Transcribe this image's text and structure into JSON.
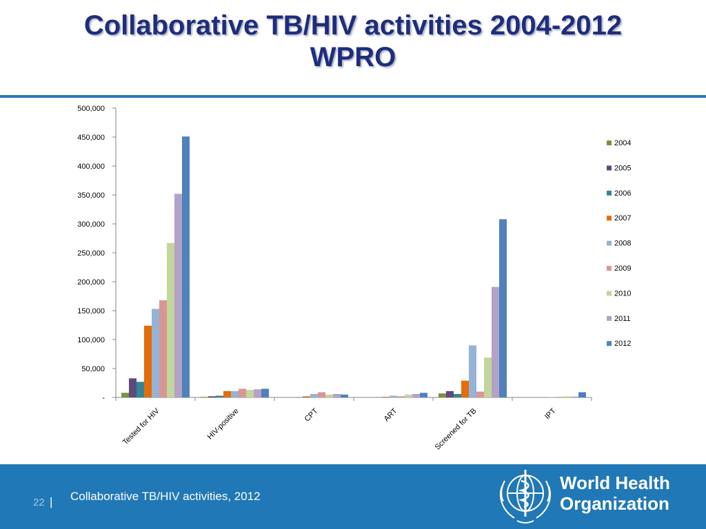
{
  "slide": {
    "title_line1": "Collaborative TB/HIV activities 2004-2012",
    "title_line2": "WPRO"
  },
  "footer": {
    "page_number": "22",
    "separator": "|",
    "text": "Collaborative TB/HIV activities, 2012",
    "org_line1": "World Health",
    "org_line2": "Organization",
    "colors": {
      "band": "#2178b6",
      "page_number": "#9fc8ea",
      "text": "#ffffff"
    }
  },
  "chart_data": {
    "type": "bar",
    "categories": [
      "Tested for HIV",
      "HIV-positive",
      "CPT",
      "ART",
      "Screened for TB",
      "IPT"
    ],
    "series": [
      {
        "name": "2004",
        "color": "#77933c",
        "values": [
          8000,
          1000,
          0,
          0,
          7000,
          0
        ]
      },
      {
        "name": "2005",
        "color": "#5f497a",
        "values": [
          33000,
          2000,
          0,
          0,
          11000,
          0
        ]
      },
      {
        "name": "2006",
        "color": "#31859c",
        "values": [
          27000,
          3000,
          500,
          500,
          6000,
          0
        ]
      },
      {
        "name": "2007",
        "color": "#e46c0a",
        "values": [
          124000,
          11000,
          2000,
          1000,
          29000,
          0
        ]
      },
      {
        "name": "2008",
        "color": "#95b3d7",
        "values": [
          153000,
          11000,
          6000,
          3000,
          90000,
          500
        ]
      },
      {
        "name": "2009",
        "color": "#d99694",
        "values": [
          168000,
          15000,
          9000,
          2000,
          10000,
          1000
        ]
      },
      {
        "name": "2010",
        "color": "#c3d69b",
        "values": [
          267000,
          13000,
          5000,
          5000,
          69000,
          2000
        ]
      },
      {
        "name": "2011",
        "color": "#b3a2c7",
        "values": [
          352000,
          14000,
          6000,
          6000,
          191000,
          1500
        ]
      },
      {
        "name": "2012",
        "color": "#4f81bd",
        "values": [
          451000,
          15000,
          5000,
          8000,
          308000,
          9000
        ]
      }
    ],
    "yticks": [
      "-",
      "50,000",
      "100,000",
      "150,000",
      "200,000",
      "250,000",
      "300,000",
      "350,000",
      "400,000",
      "450,000",
      "500,000"
    ],
    "ylim": [
      0,
      500000
    ],
    "grid": false,
    "legend": "right"
  }
}
